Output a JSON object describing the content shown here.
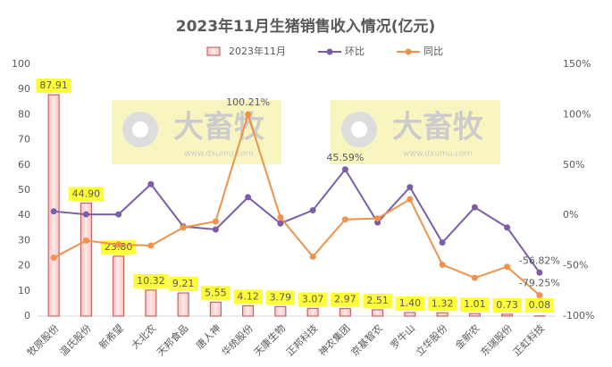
{
  "chart_data": {
    "type": "bar-line-combo",
    "title": "2023年11月生猪销售收入情况(亿元)",
    "categories": [
      "牧原股份",
      "温氏股份",
      "新希望",
      "大北农",
      "天邦食品",
      "唐人神",
      "华统股份",
      "天康生物",
      "正邦科技",
      "神农集团",
      "京基智农",
      "罗牛山",
      "立华股份",
      "金新农",
      "东瑞股份",
      "正虹科技"
    ],
    "series": [
      {
        "name": "2023年11月",
        "type": "bar",
        "color": "#c0504d",
        "values": [
          87.91,
          44.9,
          23.8,
          10.32,
          9.21,
          5.55,
          4.12,
          3.79,
          3.07,
          2.97,
          2.51,
          1.4,
          1.32,
          1.01,
          0.73,
          0.08
        ],
        "value_labels": [
          "87.91",
          "44.90",
          "23.80",
          "10.32",
          "9.21",
          "5.55",
          "4.12",
          "3.79",
          "3.07",
          "2.97",
          "2.51",
          "1.40",
          "1.32",
          "1.01",
          "0.73",
          "0.08"
        ]
      },
      {
        "name": "环比",
        "type": "line",
        "axis": "y2",
        "color": "#7b5ea7",
        "values": [
          4,
          1,
          1,
          31,
          -11,
          -14,
          18,
          -8,
          5,
          45.59,
          -7,
          28,
          -27,
          8,
          -12,
          -56.82
        ],
        "value_labels": [
          null,
          null,
          null,
          null,
          null,
          null,
          null,
          null,
          null,
          "45.59%",
          null,
          null,
          null,
          null,
          null,
          "-56.82%"
        ]
      },
      {
        "name": "同比",
        "type": "line",
        "axis": "y2",
        "color": "#f0924a",
        "values": [
          -42,
          -25,
          -29,
          -30,
          -12,
          -6,
          100.21,
          -2,
          -41,
          -4,
          -3,
          16,
          -49,
          -62,
          -51,
          -79.25
        ],
        "value_labels": [
          null,
          null,
          null,
          null,
          null,
          null,
          "100.21%",
          null,
          null,
          null,
          null,
          null,
          null,
          null,
          null,
          "-79.25%"
        ]
      }
    ],
    "ylim": [
      0,
      100
    ],
    "yticks": [
      0,
      10,
      20,
      30,
      40,
      50,
      60,
      70,
      80,
      90,
      100
    ],
    "y2lim": [
      -100,
      150
    ],
    "y2ticks": [
      {
        "value": -100,
        "label": "-100%"
      },
      {
        "value": -50,
        "label": "-50%"
      },
      {
        "value": 0,
        "label": "0%"
      },
      {
        "value": 50,
        "label": "50%"
      },
      {
        "value": 100,
        "label": "100%"
      },
      {
        "value": 150,
        "label": "150%"
      }
    ],
    "legend": "top",
    "watermark": {
      "text": "大畜牧",
      "url": "www.dxumu.com"
    }
  }
}
